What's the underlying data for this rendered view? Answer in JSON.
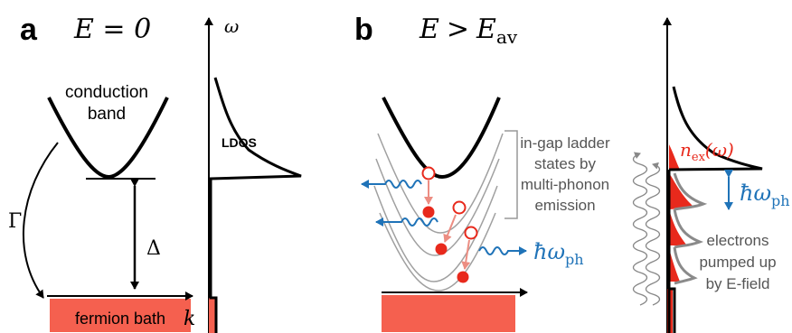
{
  "panel_a": {
    "letter": "a",
    "field_label": "E = 0",
    "band_label_line1": "conduction",
    "band_label_line2": "band",
    "gamma": "Γ",
    "delta": "Δ",
    "k_label": "k",
    "bath_label": "fermion bath",
    "omega_label": "ω",
    "ldos_label": "LDOS"
  },
  "panel_b": {
    "letter": "b",
    "field_E": "E",
    "field_gt": ">",
    "field_Eav": "E",
    "field_Eav_sub": "av",
    "ladder_line1": "in-gap ladder",
    "ladder_line2": "states by",
    "ladder_line3": "multi-phonon",
    "ladder_line4": "emission",
    "phonon_hbar": "ħω",
    "phonon_sub": "ph",
    "nex_n": "n",
    "nex_sub": "ex",
    "nex_arg": "(ω)",
    "right_hbar": "ħω",
    "right_sub": "ph",
    "pump_line1": "electrons",
    "pump_line2": "pumped up",
    "pump_line3": "by E-field"
  },
  "colors": {
    "bath": "#f5604f",
    "electron": "#e8291c",
    "hop_arrow": "#ec8d82",
    "phonon": "#1f73b8",
    "gray": "#9a9a9a",
    "text_gray": "#555555",
    "nex_text": "#e8291c"
  }
}
